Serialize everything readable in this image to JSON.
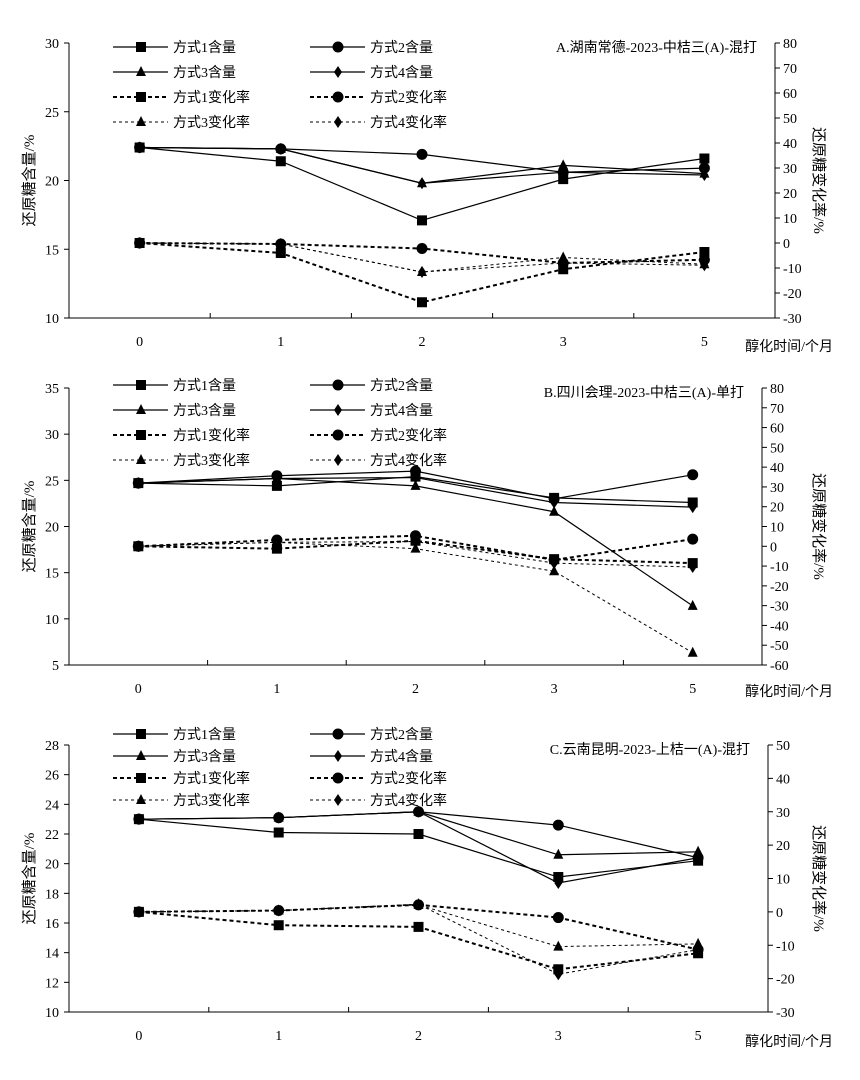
{
  "chart_data": [
    {
      "type": "line",
      "title": "A.湖南常德-2023-中桔三(A)-混打",
      "xlabel": "醇化时间/个月",
      "ylabel": "还原糖含量/%",
      "y2label": "还原糖变化率/%",
      "categories": [
        "0",
        "1",
        "2",
        "3",
        "5"
      ],
      "ylim": [
        10,
        30
      ],
      "yticks": [
        10,
        15,
        20,
        25,
        30
      ],
      "y2lim": [
        -30,
        80
      ],
      "y2ticks": [
        -30,
        -20,
        -10,
        0,
        10,
        20,
        30,
        40,
        50,
        60,
        70,
        80
      ],
      "grid": false,
      "legend": "top-left",
      "series": [
        {
          "name": "方式1含量",
          "axis": "left",
          "marker": "square",
          "style": "solid",
          "values": [
            22.4,
            21.4,
            17.1,
            20.1,
            21.6
          ]
        },
        {
          "name": "方式2含量",
          "axis": "left",
          "marker": "circle",
          "style": "solid",
          "values": [
            22.4,
            22.3,
            21.9,
            20.6,
            20.9
          ]
        },
        {
          "name": "方式3含量",
          "axis": "left",
          "marker": "triangle",
          "style": "solid",
          "values": [
            22.4,
            22.3,
            19.8,
            21.1,
            20.5
          ]
        },
        {
          "name": "方式4含量",
          "axis": "left",
          "marker": "diamond",
          "style": "solid",
          "values": [
            22.4,
            22.3,
            19.8,
            20.6,
            20.4
          ]
        },
        {
          "name": "方式1变化率",
          "axis": "right",
          "marker": "square",
          "style": "dash-bold",
          "values": [
            0,
            -4.0,
            -23.7,
            -10.5,
            -3.6
          ]
        },
        {
          "name": "方式2变化率",
          "axis": "right",
          "marker": "circle",
          "style": "dash-bold",
          "values": [
            0,
            -0.4,
            -2.2,
            -8.0,
            -6.7
          ]
        },
        {
          "name": "方式3变化率",
          "axis": "right",
          "marker": "triangle",
          "style": "dash-light",
          "values": [
            0,
            -0.4,
            -11.6,
            -5.8,
            -8.5
          ]
        },
        {
          "name": "方式4变化率",
          "axis": "right",
          "marker": "diamond",
          "style": "dash-light",
          "values": [
            0,
            -0.4,
            -11.6,
            -8.0,
            -8.9
          ]
        }
      ]
    },
    {
      "type": "line",
      "title": "B.四川会理-2023-中桔三(A)-单打",
      "xlabel": "醇化时间/个月",
      "ylabel": "还原糖含量/%",
      "y2label": "还原糖变化率/%",
      "categories": [
        "0",
        "1",
        "2",
        "3",
        "5"
      ],
      "ylim": [
        5,
        35
      ],
      "yticks": [
        5,
        10,
        15,
        20,
        25,
        30,
        35
      ],
      "y2lim": [
        -60,
        80
      ],
      "y2ticks": [
        -60,
        -50,
        -40,
        -30,
        -20,
        -10,
        0,
        10,
        20,
        30,
        40,
        50,
        60,
        70,
        80
      ],
      "grid": false,
      "legend": "top-left",
      "series": [
        {
          "name": "方式1含量",
          "axis": "left",
          "marker": "square",
          "style": "solid",
          "values": [
            24.7,
            24.4,
            25.4,
            23.1,
            22.6
          ]
        },
        {
          "name": "方式2含量",
          "axis": "left",
          "marker": "circle",
          "style": "solid",
          "values": [
            24.7,
            25.5,
            26.0,
            23.0,
            25.6
          ]
        },
        {
          "name": "方式3含量",
          "axis": "left",
          "marker": "triangle",
          "style": "solid",
          "values": [
            24.7,
            25.2,
            24.4,
            21.6,
            11.4
          ]
        },
        {
          "name": "方式4含量",
          "axis": "left",
          "marker": "diamond",
          "style": "solid",
          "values": [
            24.7,
            25.2,
            25.3,
            22.6,
            22.1
          ]
        },
        {
          "name": "方式1变化率",
          "axis": "right",
          "marker": "square",
          "style": "dash-bold",
          "values": [
            0,
            -1.2,
            2.8,
            -6.5,
            -8.5
          ]
        },
        {
          "name": "方式2变化率",
          "axis": "right",
          "marker": "circle",
          "style": "dash-bold",
          "values": [
            0,
            3.2,
            5.3,
            -6.9,
            3.6
          ]
        },
        {
          "name": "方式3变化率",
          "axis": "right",
          "marker": "triangle",
          "style": "dash-light",
          "values": [
            0,
            2.0,
            -1.2,
            -12.6,
            -53.8
          ]
        },
        {
          "name": "方式4变化率",
          "axis": "right",
          "marker": "diamond",
          "style": "dash-light",
          "values": [
            0,
            2.0,
            2.4,
            -8.5,
            -10.5
          ]
        }
      ]
    },
    {
      "type": "line",
      "title": "C.云南昆明-2023-上桔一(A)-混打",
      "xlabel": "醇化时间/个月",
      "ylabel": "还原糖含量/%",
      "y2label": "还原糖变化率/%",
      "categories": [
        "0",
        "1",
        "2",
        "3",
        "5"
      ],
      "ylim": [
        10,
        28
      ],
      "yticks": [
        10,
        12,
        14,
        16,
        18,
        20,
        22,
        24,
        26,
        28
      ],
      "y2lim": [
        -30,
        50
      ],
      "y2ticks": [
        -30,
        -20,
        -10,
        0,
        10,
        20,
        30,
        40,
        50
      ],
      "grid": false,
      "legend": "top-left",
      "series": [
        {
          "name": "方式1含量",
          "axis": "left",
          "marker": "square",
          "style": "solid",
          "values": [
            23.0,
            22.1,
            22.0,
            19.1,
            20.2
          ]
        },
        {
          "name": "方式2含量",
          "axis": "left",
          "marker": "circle",
          "style": "solid",
          "values": [
            23.0,
            23.1,
            23.5,
            22.6,
            20.4
          ]
        },
        {
          "name": "方式3含量",
          "axis": "left",
          "marker": "triangle",
          "style": "solid",
          "values": [
            23.0,
            23.1,
            23.5,
            20.6,
            20.8
          ]
        },
        {
          "name": "方式4含量",
          "axis": "left",
          "marker": "diamond",
          "style": "solid",
          "values": [
            23.0,
            23.1,
            23.5,
            18.7,
            20.4
          ]
        },
        {
          "name": "方式1变化率",
          "axis": "right",
          "marker": "square",
          "style": "dash-bold",
          "values": [
            0,
            -4.0,
            -4.5,
            -17.2,
            -12.4
          ]
        },
        {
          "name": "方式2变化率",
          "axis": "right",
          "marker": "circle",
          "style": "dash-bold",
          "values": [
            0,
            0.4,
            2.1,
            -1.7,
            -11.3
          ]
        },
        {
          "name": "方式3变化率",
          "axis": "right",
          "marker": "triangle",
          "style": "dash-light",
          "values": [
            0,
            0.4,
            2.1,
            -10.4,
            -9.6
          ]
        },
        {
          "name": "方式4变化率",
          "axis": "right",
          "marker": "diamond",
          "style": "dash-light",
          "values": [
            0,
            0.4,
            2.3,
            -18.7,
            -11.3
          ]
        }
      ]
    }
  ]
}
